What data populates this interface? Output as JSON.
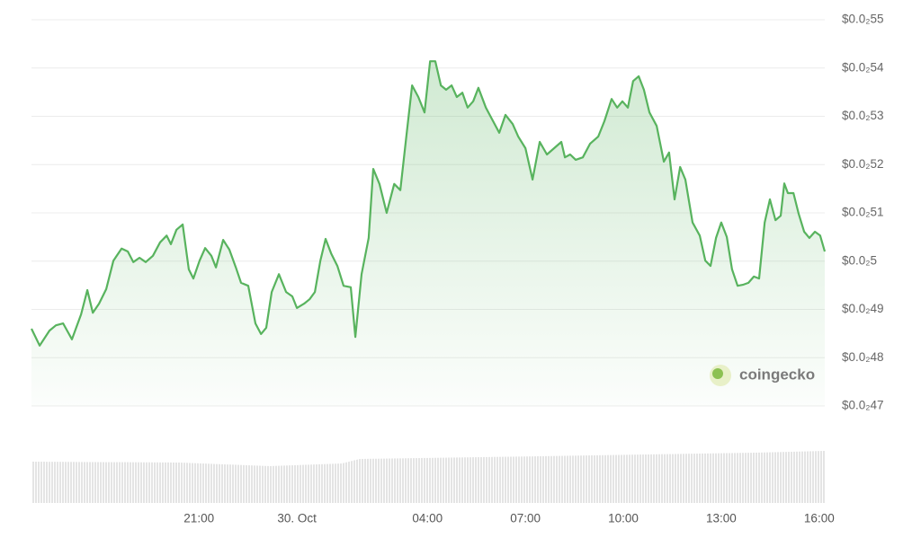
{
  "chart_data": {
    "type": "area-line",
    "watermark": "coingecko",
    "color": "#58b35e",
    "grid": true,
    "xlim": [
      -8.13,
      16.17
    ],
    "xticks": [
      {
        "value": -3,
        "label": "21:00"
      },
      {
        "value": 0,
        "label": "30. Oct"
      },
      {
        "value": 4,
        "label": "04:00"
      },
      {
        "value": 7,
        "label": "07:00"
      },
      {
        "value": 10,
        "label": "10:00"
      },
      {
        "value": 13,
        "label": "13:00"
      },
      {
        "value": 16,
        "label": "16:00"
      }
    ],
    "ylim": [
      0.0047,
      0.0055
    ],
    "yticks": [
      {
        "value": 0.0055,
        "label": "$0.0₂55"
      },
      {
        "value": 0.0054,
        "label": "$0.0₂54"
      },
      {
        "value": 0.0053,
        "label": "$0.0₂53"
      },
      {
        "value": 0.0052,
        "label": "$0.0₂52"
      },
      {
        "value": 0.0051,
        "label": "$0.0₂51"
      },
      {
        "value": 0.005,
        "label": "$0.0₂5"
      },
      {
        "value": 0.0049,
        "label": "$0.0₂49"
      },
      {
        "value": 0.0048,
        "label": "$0.0₂48"
      },
      {
        "value": 0.0047,
        "label": "$0.0₂47"
      }
    ],
    "x": [
      -8.13,
      -7.88,
      -7.58,
      -7.38,
      -7.16,
      -6.89,
      -6.61,
      -6.42,
      -6.25,
      -6.06,
      -5.84,
      -5.62,
      -5.37,
      -5.18,
      -5.01,
      -4.82,
      -4.63,
      -4.41,
      -4.19,
      -3.99,
      -3.86,
      -3.69,
      -3.5,
      -3.31,
      -3.17,
      -2.98,
      -2.81,
      -2.62,
      -2.48,
      -2.26,
      -2.07,
      -1.87,
      -1.71,
      -1.49,
      -1.27,
      -1.1,
      -0.94,
      -0.77,
      -0.55,
      -0.33,
      -0.14,
      0,
      0.22,
      0.39,
      0.55,
      0.72,
      0.88,
      1.05,
      1.24,
      1.43,
      1.65,
      1.79,
      1.98,
      2.2,
      2.34,
      2.53,
      2.75,
      2.98,
      3.17,
      3.36,
      3.53,
      3.72,
      3.91,
      4.08,
      4.24,
      4.41,
      4.57,
      4.74,
      4.9,
      5.07,
      5.23,
      5.4,
      5.56,
      5.79,
      6.01,
      6.2,
      6.39,
      6.61,
      6.78,
      7.0,
      7.22,
      7.44,
      7.66,
      7.88,
      8.1,
      8.21,
      8.37,
      8.54,
      8.76,
      8.98,
      9.23,
      9.42,
      9.64,
      9.81,
      9.97,
      10.14,
      10.3,
      10.47,
      10.63,
      10.8,
      11.02,
      11.24,
      11.4,
      11.57,
      11.74,
      11.9,
      12.12,
      12.34,
      12.51,
      12.67,
      12.84,
      13.0,
      13.17,
      13.33,
      13.5,
      13.66,
      13.83,
      14.0,
      14.16,
      14.33,
      14.49,
      14.66,
      14.82,
      14.93,
      15.04,
      15.21,
      15.37,
      15.54,
      15.7,
      15.87,
      16.03,
      16.17
    ],
    "values": [
      0.00486,
      0.004825,
      0.004856,
      0.004867,
      0.004871,
      0.004838,
      0.00489,
      0.00494,
      0.004893,
      0.004912,
      0.004942,
      0.005001,
      0.005026,
      0.00502,
      0.004998,
      0.005007,
      0.004998,
      0.005011,
      0.005039,
      0.005053,
      0.005035,
      0.005065,
      0.005076,
      0.004983,
      0.004964,
      0.005001,
      0.005027,
      0.005011,
      0.004987,
      0.005044,
      0.005024,
      0.004987,
      0.004955,
      0.004949,
      0.004871,
      0.004849,
      0.004862,
      0.004936,
      0.004973,
      0.004936,
      0.004927,
      0.004903,
      0.004912,
      0.004921,
      0.004936,
      0.005001,
      0.005046,
      0.005016,
      0.00499,
      0.004949,
      0.004946,
      0.004843,
      0.004973,
      0.005048,
      0.005191,
      0.00516,
      0.0051,
      0.00516,
      0.005147,
      0.005262,
      0.005364,
      0.00534,
      0.005308,
      0.005414,
      0.005414,
      0.005364,
      0.005355,
      0.005364,
      0.00534,
      0.005349,
      0.005318,
      0.005331,
      0.005359,
      0.005318,
      0.00529,
      0.005266,
      0.005303,
      0.005284,
      0.005258,
      0.005234,
      0.005169,
      0.005247,
      0.005221,
      0.005234,
      0.005247,
      0.005215,
      0.005221,
      0.00521,
      0.005215,
      0.005243,
      0.005258,
      0.00529,
      0.005336,
      0.005318,
      0.005331,
      0.005318,
      0.005373,
      0.005383,
      0.005355,
      0.005308,
      0.00528,
      0.005206,
      0.005225,
      0.005128,
      0.005195,
      0.005169,
      0.00508,
      0.005053,
      0.005001,
      0.00499,
      0.005048,
      0.00508,
      0.00505,
      0.004983,
      0.004949,
      0.004951,
      0.004955,
      0.004968,
      0.004964,
      0.00508,
      0.005128,
      0.005085,
      0.005094,
      0.005161,
      0.005141,
      0.005141,
      0.005098,
      0.005061,
      0.005048,
      0.005061,
      0.005053,
      0.00502
    ]
  }
}
